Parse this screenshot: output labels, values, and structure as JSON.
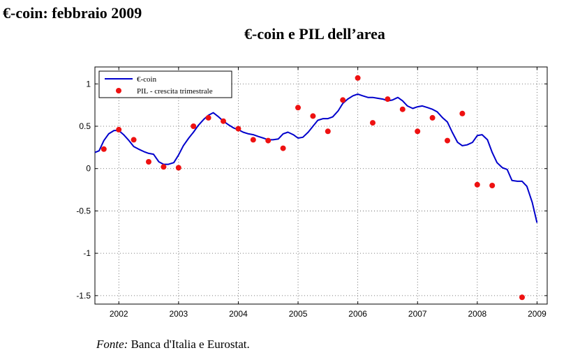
{
  "page": {
    "title": "€-coin: febbraio 2009",
    "source_label": "Fonte:",
    "source_text": "Banca d'Italia e Eurostat."
  },
  "chart_data": {
    "type": "line",
    "title": "€-coin e PIL dell’area",
    "xlabel": "",
    "ylabel": "",
    "xlim": [
      2001.6,
      2009.17
    ],
    "ylim": [
      -1.6,
      1.2
    ],
    "grid": true,
    "legend_position": "top-left",
    "yticks": [
      {
        "value": 1,
        "label": "1"
      },
      {
        "value": 0.5,
        "label": "0.5"
      },
      {
        "value": 0,
        "label": "0"
      },
      {
        "value": -0.5,
        "label": "-0.5"
      },
      {
        "value": -1,
        "label": "-1"
      },
      {
        "value": -1.5,
        "label": "-1.5"
      }
    ],
    "xticks": [
      {
        "value": 2002,
        "label": "2002"
      },
      {
        "value": 2003,
        "label": "2003"
      },
      {
        "value": 2004,
        "label": "2004"
      },
      {
        "value": 2005,
        "label": "2005"
      },
      {
        "value": 2006,
        "label": "2006"
      },
      {
        "value": 2007,
        "label": "2007"
      },
      {
        "value": 2008,
        "label": "2008"
      },
      {
        "value": 2009,
        "label": "2009"
      }
    ],
    "series": [
      {
        "name": "€-coin",
        "kind": "line",
        "color": "#0000cc",
        "points": [
          [
            2001.6,
            0.19
          ],
          [
            2001.67,
            0.21
          ],
          [
            2001.75,
            0.33
          ],
          [
            2001.83,
            0.41
          ],
          [
            2001.92,
            0.45
          ],
          [
            2002.0,
            0.45
          ],
          [
            2002.08,
            0.4
          ],
          [
            2002.17,
            0.33
          ],
          [
            2002.25,
            0.26
          ],
          [
            2002.33,
            0.23
          ],
          [
            2002.42,
            0.2
          ],
          [
            2002.5,
            0.18
          ],
          [
            2002.58,
            0.17
          ],
          [
            2002.67,
            0.08
          ],
          [
            2002.75,
            0.05
          ],
          [
            2002.83,
            0.05
          ],
          [
            2002.92,
            0.07
          ],
          [
            2003.0,
            0.16
          ],
          [
            2003.08,
            0.27
          ],
          [
            2003.17,
            0.36
          ],
          [
            2003.25,
            0.43
          ],
          [
            2003.33,
            0.51
          ],
          [
            2003.42,
            0.58
          ],
          [
            2003.5,
            0.63
          ],
          [
            2003.58,
            0.66
          ],
          [
            2003.67,
            0.61
          ],
          [
            2003.75,
            0.56
          ],
          [
            2003.83,
            0.52
          ],
          [
            2003.92,
            0.48
          ],
          [
            2004.0,
            0.46
          ],
          [
            2004.08,
            0.43
          ],
          [
            2004.17,
            0.41
          ],
          [
            2004.25,
            0.4
          ],
          [
            2004.33,
            0.38
          ],
          [
            2004.42,
            0.36
          ],
          [
            2004.5,
            0.34
          ],
          [
            2004.58,
            0.34
          ],
          [
            2004.67,
            0.35
          ],
          [
            2004.75,
            0.41
          ],
          [
            2004.83,
            0.43
          ],
          [
            2004.92,
            0.4
          ],
          [
            2005.0,
            0.36
          ],
          [
            2005.08,
            0.37
          ],
          [
            2005.17,
            0.43
          ],
          [
            2005.25,
            0.5
          ],
          [
            2005.33,
            0.57
          ],
          [
            2005.42,
            0.59
          ],
          [
            2005.5,
            0.59
          ],
          [
            2005.58,
            0.61
          ],
          [
            2005.67,
            0.68
          ],
          [
            2005.75,
            0.77
          ],
          [
            2005.83,
            0.82
          ],
          [
            2005.92,
            0.86
          ],
          [
            2006.0,
            0.88
          ],
          [
            2006.08,
            0.86
          ],
          [
            2006.17,
            0.84
          ],
          [
            2006.25,
            0.84
          ],
          [
            2006.33,
            0.83
          ],
          [
            2006.42,
            0.82
          ],
          [
            2006.5,
            0.8
          ],
          [
            2006.58,
            0.81
          ],
          [
            2006.67,
            0.84
          ],
          [
            2006.75,
            0.8
          ],
          [
            2006.83,
            0.74
          ],
          [
            2006.92,
            0.71
          ],
          [
            2007.0,
            0.73
          ],
          [
            2007.08,
            0.74
          ],
          [
            2007.17,
            0.72
          ],
          [
            2007.25,
            0.7
          ],
          [
            2007.33,
            0.67
          ],
          [
            2007.42,
            0.6
          ],
          [
            2007.5,
            0.55
          ],
          [
            2007.58,
            0.43
          ],
          [
            2007.67,
            0.31
          ],
          [
            2007.75,
            0.27
          ],
          [
            2007.83,
            0.28
          ],
          [
            2007.92,
            0.31
          ],
          [
            2008.0,
            0.39
          ],
          [
            2008.08,
            0.4
          ],
          [
            2008.17,
            0.34
          ],
          [
            2008.25,
            0.19
          ],
          [
            2008.33,
            0.07
          ],
          [
            2008.42,
            0.01
          ],
          [
            2008.5,
            -0.01
          ],
          [
            2008.58,
            -0.14
          ],
          [
            2008.67,
            -0.15
          ],
          [
            2008.75,
            -0.15
          ],
          [
            2008.83,
            -0.21
          ],
          [
            2008.92,
            -0.4
          ],
          [
            2009.0,
            -0.64
          ]
        ]
      },
      {
        "name": "PIL - crescita trimestrale",
        "kind": "scatter",
        "color": "#ee1111",
        "points": [
          [
            2001.75,
            0.23
          ],
          [
            2002.0,
            0.46
          ],
          [
            2002.25,
            0.34
          ],
          [
            2002.5,
            0.08
          ],
          [
            2002.75,
            0.02
          ],
          [
            2003.0,
            0.01
          ],
          [
            2003.25,
            0.5
          ],
          [
            2003.5,
            0.6
          ],
          [
            2003.75,
            0.56
          ],
          [
            2004.0,
            0.47
          ],
          [
            2004.25,
            0.34
          ],
          [
            2004.5,
            0.33
          ],
          [
            2004.75,
            0.24
          ],
          [
            2005.0,
            0.72
          ],
          [
            2005.25,
            0.62
          ],
          [
            2005.5,
            0.44
          ],
          [
            2005.75,
            0.81
          ],
          [
            2006.0,
            1.07
          ],
          [
            2006.25,
            0.54
          ],
          [
            2006.5,
            0.82
          ],
          [
            2006.75,
            0.7
          ],
          [
            2007.0,
            0.44
          ],
          [
            2007.25,
            0.6
          ],
          [
            2007.5,
            0.33
          ],
          [
            2007.75,
            0.65
          ],
          [
            2008.0,
            -0.19
          ],
          [
            2008.25,
            -0.2
          ],
          [
            2008.75,
            -1.52
          ]
        ]
      }
    ]
  }
}
